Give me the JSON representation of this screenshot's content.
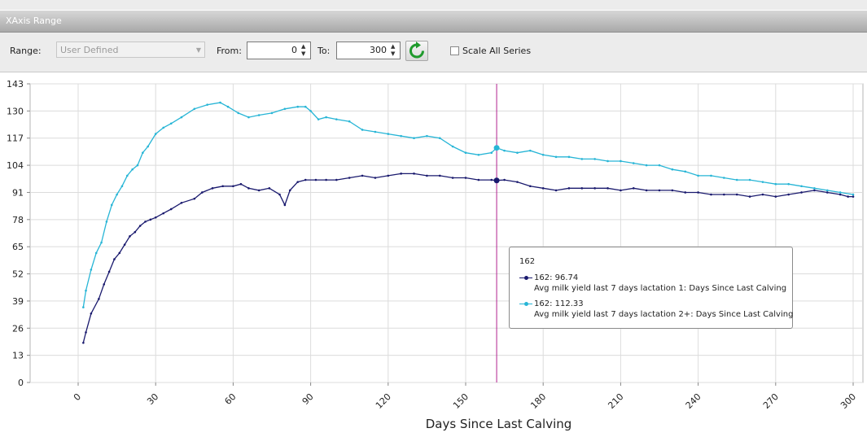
{
  "window": {
    "panel_title": "XAxis Range"
  },
  "toolbar": {
    "range_label": "Range:",
    "range_value": "User Defined",
    "from_label": "From:",
    "from_value": "0",
    "to_label": "To:",
    "to_value": "300",
    "refresh_icon": "refresh-icon",
    "scale_all_label": "Scale All Series",
    "scale_all_checked": false
  },
  "tooltip": {
    "header": "162",
    "rows": [
      {
        "value": "162: 96.74",
        "desc": "Avg milk yield last 7 days lactation 1: Days Since Last Calving",
        "color": "#1a1a6e"
      },
      {
        "value": "162: 112.33",
        "desc": "Avg milk yield last 7 days lactation 2+: Days Since Last Calving",
        "color": "#27b5d6"
      }
    ]
  },
  "chart_data": {
    "type": "line",
    "xlabel": "Days Since Last Calving",
    "ylabel": "",
    "xlim": [
      0,
      300
    ],
    "ylim": [
      0,
      143
    ],
    "x_ticks": [
      "0",
      "30",
      "60",
      "90",
      "120",
      "150",
      "180",
      "210",
      "240",
      "270",
      "300"
    ],
    "y_ticks": [
      "0",
      "13",
      "26",
      "39",
      "52",
      "65",
      "78",
      "91",
      "104",
      "117",
      "130",
      "143"
    ],
    "grid": true,
    "cursor_x": 162,
    "series": [
      {
        "color": "#1a1a6e",
        "points": [
          [
            2,
            19
          ],
          [
            3,
            24
          ],
          [
            5,
            33
          ],
          [
            8,
            40
          ],
          [
            10,
            47
          ],
          [
            12,
            53
          ],
          [
            14,
            59
          ],
          [
            16,
            62
          ],
          [
            18,
            66
          ],
          [
            20,
            70
          ],
          [
            22,
            72
          ],
          [
            24,
            75
          ],
          [
            26,
            77
          ],
          [
            28,
            78
          ],
          [
            30,
            79
          ],
          [
            33,
            81
          ],
          [
            36,
            83
          ],
          [
            40,
            86
          ],
          [
            45,
            88
          ],
          [
            48,
            91
          ],
          [
            52,
            93
          ],
          [
            56,
            94
          ],
          [
            60,
            94
          ],
          [
            63,
            95
          ],
          [
            66,
            93
          ],
          [
            70,
            92
          ],
          [
            74,
            93
          ],
          [
            78,
            90
          ],
          [
            80,
            85
          ],
          [
            82,
            92
          ],
          [
            85,
            96
          ],
          [
            88,
            97
          ],
          [
            92,
            97
          ],
          [
            96,
            97
          ],
          [
            100,
            97
          ],
          [
            105,
            98
          ],
          [
            110,
            99
          ],
          [
            115,
            98
          ],
          [
            120,
            99
          ],
          [
            125,
            100
          ],
          [
            130,
            100
          ],
          [
            135,
            99
          ],
          [
            140,
            99
          ],
          [
            145,
            98
          ],
          [
            150,
            98
          ],
          [
            155,
            97
          ],
          [
            160,
            97
          ],
          [
            162,
            96.74
          ],
          [
            165,
            97
          ],
          [
            170,
            96
          ],
          [
            175,
            94
          ],
          [
            180,
            93
          ],
          [
            185,
            92
          ],
          [
            190,
            93
          ],
          [
            195,
            93
          ],
          [
            200,
            93
          ],
          [
            205,
            93
          ],
          [
            210,
            92
          ],
          [
            215,
            93
          ],
          [
            220,
            92
          ],
          [
            225,
            92
          ],
          [
            230,
            92
          ],
          [
            235,
            91
          ],
          [
            240,
            91
          ],
          [
            245,
            90
          ],
          [
            250,
            90
          ],
          [
            255,
            90
          ],
          [
            260,
            89
          ],
          [
            265,
            90
          ],
          [
            270,
            89
          ],
          [
            275,
            90
          ],
          [
            280,
            91
          ],
          [
            285,
            92
          ],
          [
            290,
            91
          ],
          [
            295,
            90
          ],
          [
            298,
            89
          ],
          [
            300,
            89
          ]
        ]
      },
      {
        "color": "#27b5d6",
        "points": [
          [
            2,
            36
          ],
          [
            3,
            44
          ],
          [
            5,
            54
          ],
          [
            7,
            62
          ],
          [
            9,
            67
          ],
          [
            11,
            77
          ],
          [
            13,
            85
          ],
          [
            15,
            90
          ],
          [
            17,
            94
          ],
          [
            19,
            99
          ],
          [
            21,
            102
          ],
          [
            23,
            104
          ],
          [
            25,
            110
          ],
          [
            27,
            113
          ],
          [
            30,
            119
          ],
          [
            33,
            122
          ],
          [
            36,
            124
          ],
          [
            40,
            127
          ],
          [
            45,
            131
          ],
          [
            50,
            133
          ],
          [
            55,
            134
          ],
          [
            58,
            132
          ],
          [
            62,
            129
          ],
          [
            66,
            127
          ],
          [
            70,
            128
          ],
          [
            75,
            129
          ],
          [
            80,
            131
          ],
          [
            85,
            132
          ],
          [
            88,
            132
          ],
          [
            90,
            130
          ],
          [
            93,
            126
          ],
          [
            96,
            127
          ],
          [
            100,
            126
          ],
          [
            105,
            125
          ],
          [
            110,
            121
          ],
          [
            115,
            120
          ],
          [
            120,
            119
          ],
          [
            125,
            118
          ],
          [
            130,
            117
          ],
          [
            135,
            118
          ],
          [
            140,
            117
          ],
          [
            145,
            113
          ],
          [
            150,
            110
          ],
          [
            155,
            109
          ],
          [
            160,
            110
          ],
          [
            162,
            112.33
          ],
          [
            165,
            111
          ],
          [
            170,
            110
          ],
          [
            175,
            111
          ],
          [
            180,
            109
          ],
          [
            185,
            108
          ],
          [
            190,
            108
          ],
          [
            195,
            107
          ],
          [
            200,
            107
          ],
          [
            205,
            106
          ],
          [
            210,
            106
          ],
          [
            215,
            105
          ],
          [
            220,
            104
          ],
          [
            225,
            104
          ],
          [
            230,
            102
          ],
          [
            235,
            101
          ],
          [
            240,
            99
          ],
          [
            245,
            99
          ],
          [
            250,
            98
          ],
          [
            255,
            97
          ],
          [
            260,
            97
          ],
          [
            265,
            96
          ],
          [
            270,
            95
          ],
          [
            275,
            95
          ],
          [
            280,
            94
          ],
          [
            285,
            93
          ],
          [
            290,
            92
          ],
          [
            295,
            91
          ],
          [
            300,
            90
          ]
        ]
      }
    ]
  }
}
